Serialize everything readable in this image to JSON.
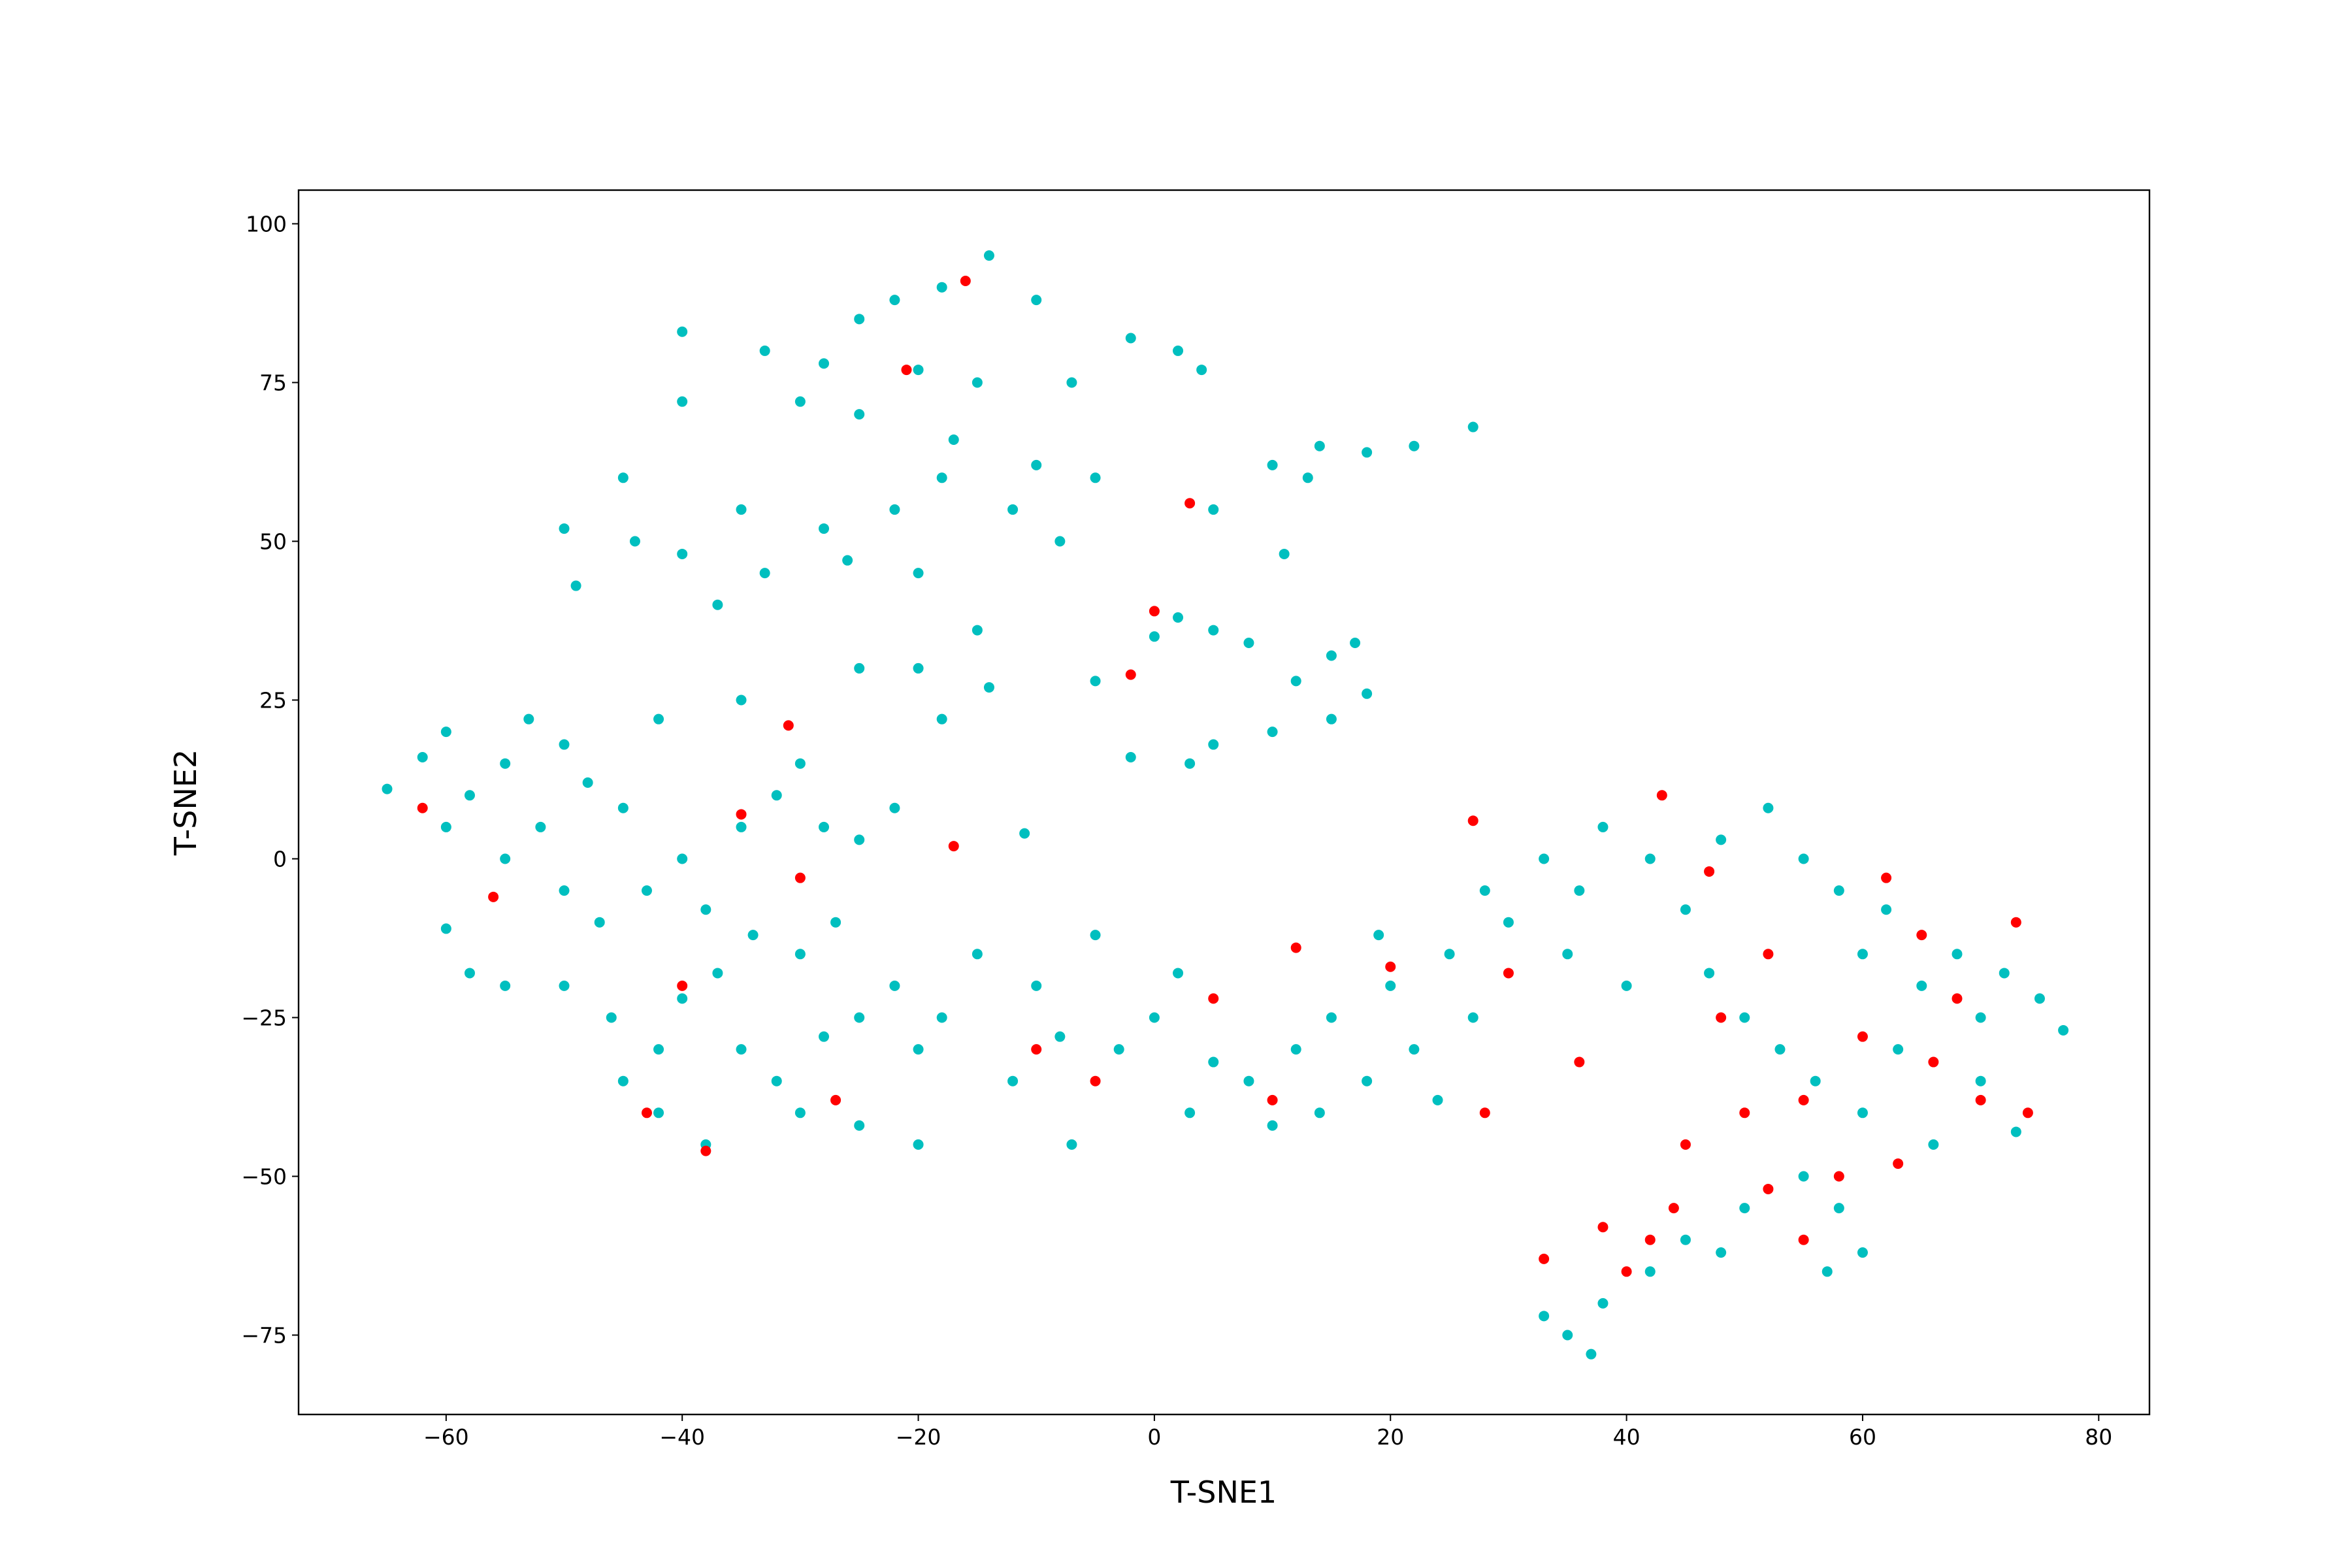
{
  "chart_data": {
    "type": "scatter",
    "xlabel": "T-SNE1",
    "ylabel": "T-SNE2",
    "xlim": [
      -72.5,
      84.3
    ],
    "ylim": [
      -87.5,
      105.3
    ],
    "xticks": [
      {
        "value": -60,
        "label": "−60"
      },
      {
        "value": -40,
        "label": "−40"
      },
      {
        "value": -20,
        "label": "−20"
      },
      0,
      20,
      40,
      60,
      80
    ],
    "yticks": [
      {
        "value": -75,
        "label": "−75"
      },
      {
        "value": -50,
        "label": "−50"
      },
      {
        "value": -25,
        "label": "−25"
      },
      0,
      25,
      50,
      75,
      100
    ],
    "grid": false,
    "series": [
      {
        "color": "#00bfbf",
        "x": [
          -40,
          -33,
          -28,
          -25,
          -22,
          -18,
          -14,
          -10,
          -20,
          -15,
          -7,
          -2,
          2,
          4,
          -40,
          -30,
          -25,
          -17,
          -10,
          -5,
          -45,
          -50,
          -44,
          -40,
          -35,
          -28,
          -22,
          -18,
          -12,
          -33,
          -26,
          -20,
          -8,
          5,
          10,
          14,
          18,
          22,
          27,
          13,
          11,
          -49,
          -37,
          -20,
          -15,
          -14,
          -18,
          -5,
          0,
          2,
          5,
          8,
          12,
          15,
          17,
          18,
          10,
          15,
          5,
          -2,
          3,
          -25,
          -35,
          -42,
          -11,
          -65,
          -62,
          -60,
          -58,
          -60,
          -55,
          -53,
          -50,
          -48,
          -45,
          -52,
          -55,
          -50,
          -47,
          -43,
          -40,
          -38,
          -35,
          -32,
          -30,
          -28,
          -25,
          -22,
          -34,
          -30,
          -27,
          -55,
          -50,
          -46,
          -42,
          -40,
          -37,
          -35,
          -32,
          -30,
          -28,
          -25,
          -45,
          -42,
          -38,
          -60,
          -58,
          -22,
          -20,
          -18,
          -15,
          -12,
          -10,
          -8,
          -5,
          -3,
          0,
          2,
          5,
          3,
          8,
          10,
          12,
          15,
          18,
          20,
          22,
          25,
          27,
          28,
          30,
          24,
          -20,
          -25,
          -7,
          14,
          19,
          33,
          36,
          38,
          42,
          45,
          48,
          52,
          55,
          58,
          60,
          62,
          65,
          68,
          70,
          72,
          75,
          77,
          35,
          40,
          47,
          50,
          53,
          56,
          60,
          63,
          66,
          70,
          73,
          55,
          58,
          50,
          45,
          48,
          42,
          38,
          35,
          33,
          37,
          60,
          57
        ],
        "values": [
          83,
          80,
          78,
          85,
          88,
          90,
          95,
          88,
          77,
          75,
          75,
          82,
          80,
          77,
          72,
          72,
          70,
          66,
          62,
          60,
          60,
          52,
          50,
          48,
          55,
          52,
          55,
          60,
          55,
          45,
          47,
          45,
          50,
          55,
          62,
          65,
          64,
          65,
          68,
          60,
          48,
          43,
          40,
          30,
          36,
          27,
          22,
          28,
          35,
          38,
          36,
          34,
          28,
          32,
          34,
          26,
          20,
          22,
          18,
          16,
          15,
          30,
          25,
          22,
          4,
          11,
          16,
          20,
          10,
          5,
          15,
          22,
          18,
          12,
          8,
          5,
          0,
          -5,
          -10,
          -5,
          0,
          -8,
          5,
          10,
          15,
          5,
          3,
          8,
          -12,
          -15,
          -10,
          -20,
          -20,
          -25,
          -30,
          -22,
          -18,
          -30,
          -35,
          -40,
          -28,
          -25,
          -35,
          -40,
          -45,
          -11,
          -18,
          -20,
          -30,
          -25,
          -15,
          -35,
          -20,
          -28,
          -12,
          -30,
          -25,
          -18,
          -32,
          -40,
          -35,
          -42,
          -30,
          -25,
          -35,
          -20,
          -30,
          -15,
          -25,
          -5,
          -10,
          -38,
          -45,
          -42,
          -45,
          -40,
          -12,
          0,
          -5,
          5,
          0,
          -8,
          3,
          8,
          0,
          -5,
          -15,
          -8,
          -20,
          -15,
          -25,
          -18,
          -22,
          -27,
          -15,
          -20,
          -18,
          -25,
          -30,
          -35,
          -40,
          -30,
          -45,
          -35,
          -43,
          -50,
          -55,
          -55,
          -60,
          -62,
          -65,
          -70,
          -75,
          -72,
          -78,
          -62,
          -65
        ]
      },
      {
        "color": "#ff0000",
        "x": [
          -40,
          -43,
          -38,
          -27,
          -35,
          -31,
          -17,
          -16,
          -21,
          0,
          -2,
          3,
          -56,
          -62,
          -30,
          10,
          20,
          27,
          30,
          33,
          38,
          40,
          43,
          45,
          48,
          50,
          52,
          55,
          58,
          60,
          62,
          65,
          68,
          70,
          73,
          74,
          44,
          42,
          47,
          55,
          63,
          66,
          52,
          36,
          28,
          12,
          5,
          -5,
          -10
        ],
        "values": [
          -20,
          -40,
          -46,
          -38,
          7,
          21,
          2,
          91,
          77,
          39,
          29,
          56,
          -6,
          8,
          -3,
          -38,
          -17,
          6,
          -18,
          -63,
          -58,
          -65,
          10,
          -45,
          -25,
          -40,
          -15,
          -38,
          -50,
          -28,
          -3,
          -12,
          -22,
          -38,
          -10,
          -40,
          -55,
          -60,
          -2,
          -60,
          -48,
          -32,
          -52,
          -32,
          -40,
          -14,
          -22,
          -35,
          -30
        ]
      }
    ]
  }
}
